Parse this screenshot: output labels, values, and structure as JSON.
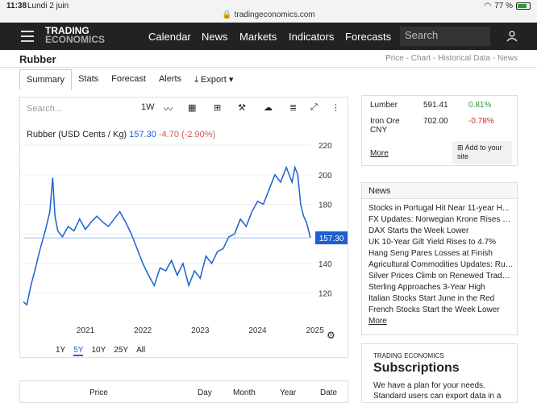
{
  "status": {
    "time": "11:38",
    "date": "Lundi 2 juin",
    "url": "tradingeconomics.com",
    "battery": "77 %",
    "battery_pct": 77
  },
  "nav": {
    "logo_line1": "TRADING",
    "logo_line2": "ECONOMICS",
    "items": [
      "Calendar",
      "News",
      "Markets",
      "Indicators",
      "Forecasts"
    ],
    "search_placeholder": "Search"
  },
  "page": {
    "title": "Rubber",
    "breadcrumbs": "Price - Chart - Historical Data - News"
  },
  "tabs": {
    "summary": "Summary",
    "stats": "Stats",
    "forecast": "Forecast",
    "alerts": "Alerts",
    "export": "Export"
  },
  "chart_toolbar": {
    "search_placeholder": "Search...",
    "interval": "1W"
  },
  "chart_info": {
    "name": "Rubber (USD Cents / Kg)",
    "price": "157.30",
    "change": "-4.70 (-2.90%)",
    "last_label": "157.30"
  },
  "range_tabs": [
    "1Y",
    "5Y",
    "10Y",
    "25Y",
    "All"
  ],
  "chart_data": {
    "type": "line",
    "x_years": [
      "2021",
      "2022",
      "2023",
      "2024",
      "2025"
    ],
    "yticks": [
      120,
      140,
      160,
      180,
      200,
      220
    ],
    "ylim": [
      105,
      225
    ],
    "xlim": [
      2020.42,
      2025.42
    ],
    "series": [
      {
        "x": [
          2020.42,
          2020.48,
          2020.55,
          2020.62,
          2020.7,
          2020.8,
          2020.88,
          2020.93,
          2020.97,
          2021.02,
          2021.1,
          2021.2,
          2021.3,
          2021.4,
          2021.5,
          2021.6,
          2021.7,
          2021.8,
          2021.9,
          2022.0,
          2022.1,
          2022.2,
          2022.3,
          2022.4,
          2022.5,
          2022.6,
          2022.7,
          2022.8,
          2022.9,
          2023.0,
          2023.1,
          2023.2,
          2023.3,
          2023.4,
          2023.5,
          2023.6,
          2023.7,
          2023.8,
          2023.9,
          2024.0,
          2024.1,
          2024.2,
          2024.3,
          2024.4,
          2024.5,
          2024.6,
          2024.7,
          2024.8,
          2024.9,
          2025.0,
          2025.05,
          2025.1,
          2025.15,
          2025.2,
          2025.25,
          2025.3,
          2025.35,
          2025.42
        ],
        "values": [
          114,
          112,
          125,
          135,
          148,
          162,
          175,
          198,
          172,
          162,
          158,
          165,
          162,
          170,
          163,
          168,
          172,
          168,
          165,
          170,
          175,
          168,
          160,
          150,
          140,
          132,
          125,
          137,
          135,
          142,
          132,
          140,
          125,
          135,
          130,
          145,
          140,
          148,
          150,
          158,
          160,
          170,
          165,
          175,
          182,
          180,
          190,
          200,
          195,
          205,
          200,
          195,
          205,
          200,
          180,
          172,
          168,
          157.3
        ]
      }
    ]
  },
  "right_table": {
    "rows": [
      {
        "name": "Lumber",
        "value": "591.41",
        "change": "0.81%"
      },
      {
        "name": "Iron Ore CNY",
        "value": "702.00",
        "change": "-0.78%"
      }
    ],
    "more": "More",
    "add_site": "Add to your site"
  },
  "news": {
    "title": "News",
    "items": [
      "Stocks in Portugal Hit Near 11-year H...",
      "FX Updates: Norwegian Krone Rises by...",
      "DAX Starts the Week Lower",
      "UK 10-Year Gilt Yield Rises to 4.7%",
      "Hang Seng Pares Losses at Finish",
      "Agricultural Commodities Updates: Rub...",
      "Silver Prices Climb on Renewed Trade ...",
      "Sterling Approaches 3-Year High",
      "Italian Stocks Start June in the Red",
      "French Stocks Start the Week Lower"
    ],
    "more": "More"
  },
  "subscriptions": {
    "small": "TRADING ECONOMICS",
    "title": "Subscriptions",
    "text": "We have a plan for your needs. Standard users can export data in a"
  },
  "bottom_table": {
    "headers": [
      "Price",
      "Day",
      "Month",
      "Year",
      "Date"
    ]
  }
}
